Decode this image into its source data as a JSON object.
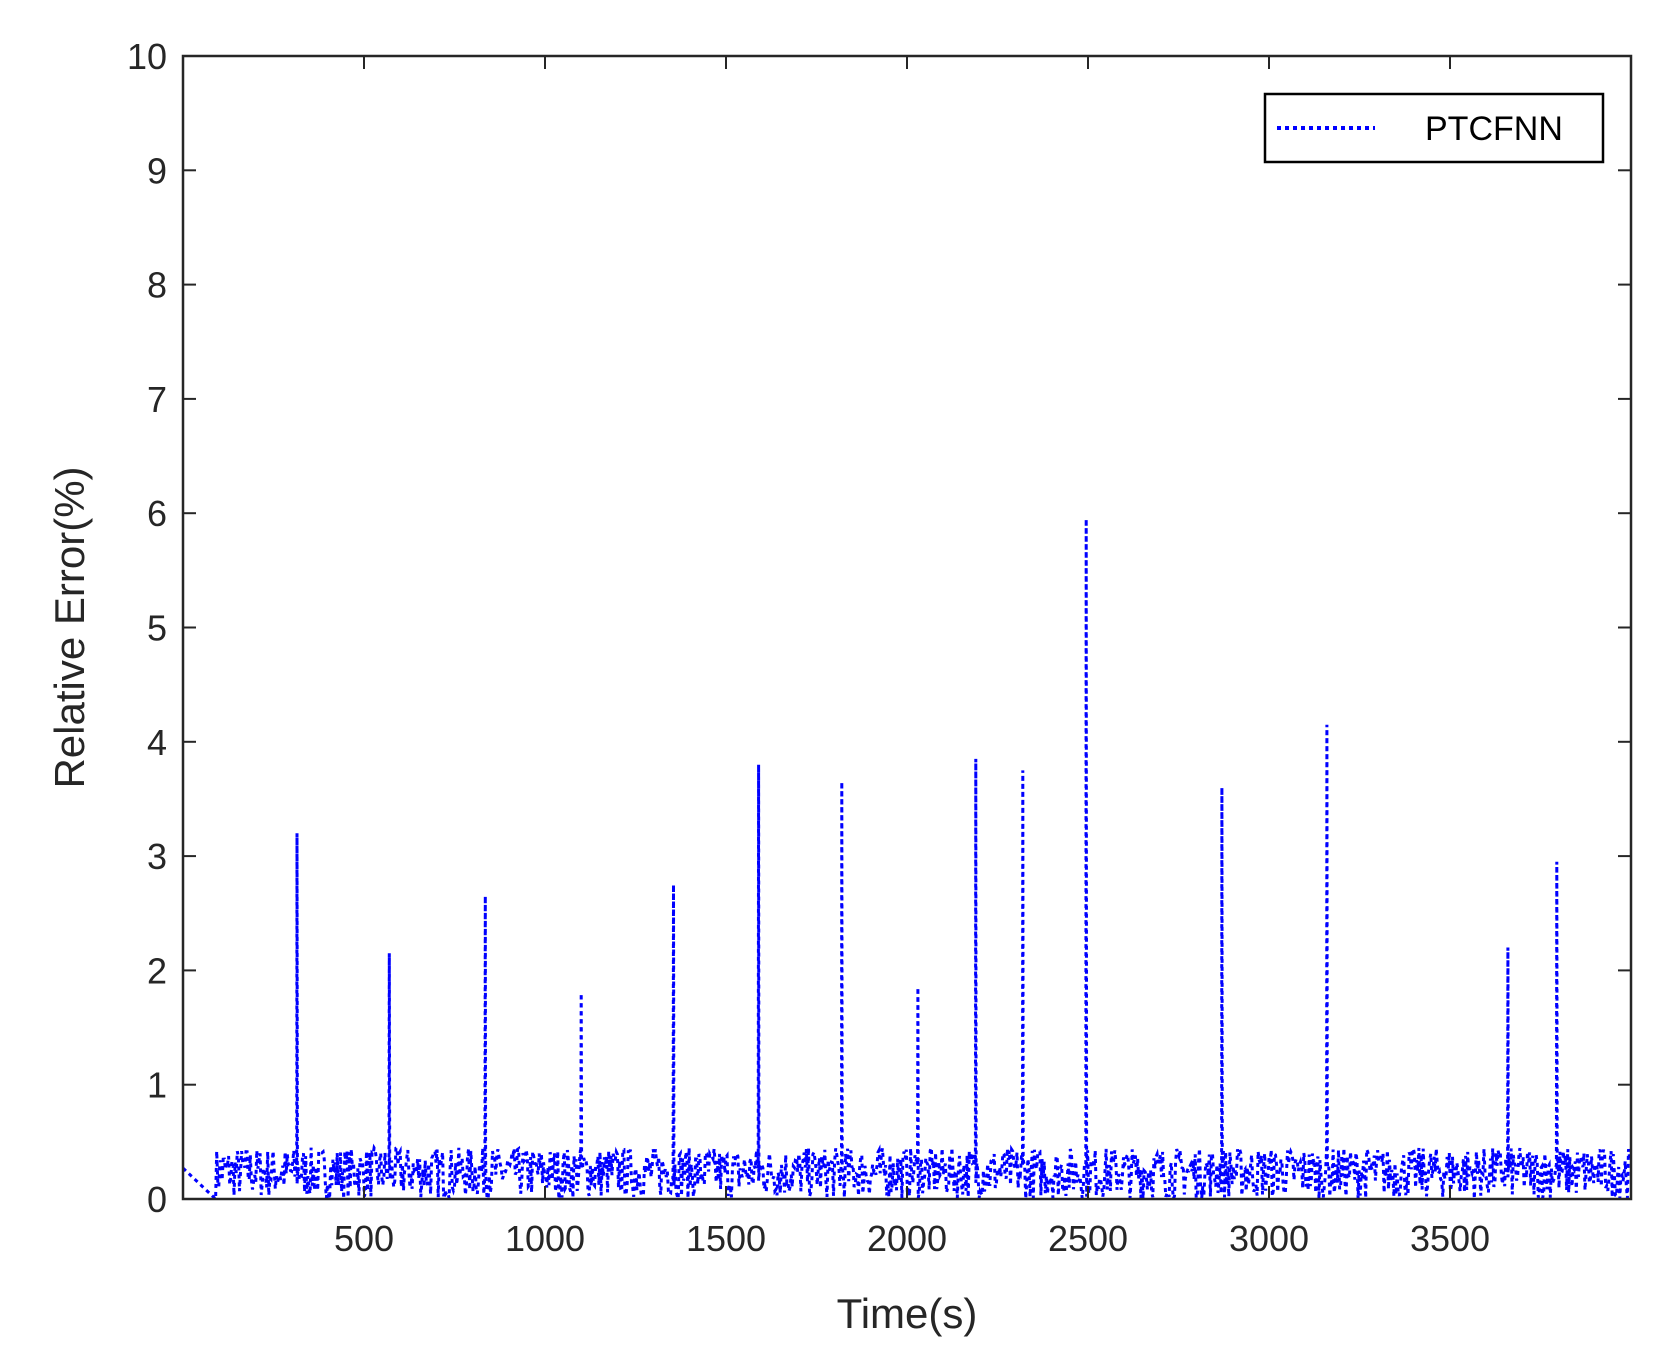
{
  "chart_data": {
    "type": "line",
    "xlabel": "Time(s)",
    "ylabel": "Relative Error(%)",
    "xlim": [
      0,
      4000
    ],
    "ylim": [
      0,
      10
    ],
    "x_ticks": [
      500,
      1000,
      1500,
      2000,
      2500,
      3000,
      3500
    ],
    "y_ticks": [
      0,
      1,
      2,
      3,
      4,
      5,
      6,
      7,
      8,
      9,
      10
    ],
    "grid": false,
    "legend_position": "top-right",
    "line_style": "dotted",
    "color": "#0000ff",
    "series": [
      {
        "name": "PTCFNN",
        "baseline_range": [
          0.0,
          0.45
        ],
        "spikes": [
          {
            "x": 315,
            "y": 3.2
          },
          {
            "x": 570,
            "y": 2.15
          },
          {
            "x": 835,
            "y": 2.65
          },
          {
            "x": 1100,
            "y": 1.8
          },
          {
            "x": 1355,
            "y": 2.75
          },
          {
            "x": 1590,
            "y": 3.8
          },
          {
            "x": 1820,
            "y": 3.65
          },
          {
            "x": 2030,
            "y": 1.85
          },
          {
            "x": 2190,
            "y": 3.85
          },
          {
            "x": 2320,
            "y": 3.75
          },
          {
            "x": 2495,
            "y": 5.95
          },
          {
            "x": 2870,
            "y": 3.6
          },
          {
            "x": 3160,
            "y": 4.15
          },
          {
            "x": 3660,
            "y": 2.2
          },
          {
            "x": 3795,
            "y": 2.95
          }
        ]
      }
    ]
  }
}
